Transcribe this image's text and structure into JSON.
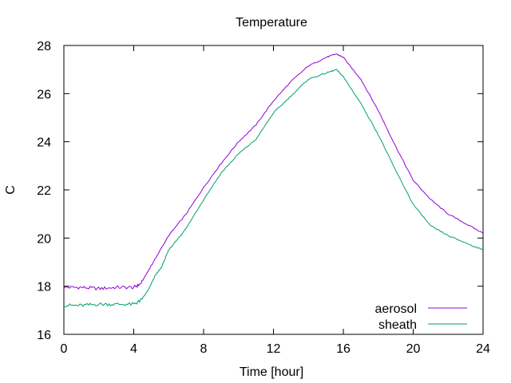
{
  "chart_data": {
    "type": "line",
    "title": "Temperature",
    "xlabel": "Time [hour]",
    "ylabel": "C",
    "xlim": [
      0,
      24
    ],
    "ylim": [
      16,
      28
    ],
    "xticks": [
      0,
      4,
      8,
      12,
      16,
      20,
      24
    ],
    "yticks": [
      16,
      18,
      20,
      22,
      24,
      26,
      28
    ],
    "grid": false,
    "legend_position": "bottom-right",
    "series": [
      {
        "name": "aerosol",
        "color": "#9400d3",
        "x": [
          0,
          1,
          2,
          3,
          4,
          4.4,
          4.8,
          5.2,
          5.6,
          6,
          7,
          8,
          9,
          10,
          11,
          12,
          13,
          14,
          15,
          15.6,
          16,
          17,
          18,
          19,
          20,
          21,
          22,
          23,
          24
        ],
        "y": [
          17.95,
          17.95,
          17.9,
          17.95,
          17.95,
          18.1,
          18.6,
          19.1,
          19.6,
          20.1,
          21.0,
          22.1,
          23.1,
          24.0,
          24.7,
          25.7,
          26.5,
          27.15,
          27.5,
          27.65,
          27.5,
          26.6,
          25.3,
          23.8,
          22.4,
          21.6,
          21.0,
          20.6,
          20.2
        ]
      },
      {
        "name": "sheath",
        "color": "#009e73",
        "x": [
          0,
          1,
          2,
          3,
          4,
          4.4,
          4.8,
          5.2,
          5.6,
          6,
          7,
          8,
          9,
          10,
          11,
          12,
          13,
          14,
          15,
          15.6,
          16,
          17,
          18,
          19,
          20,
          21,
          22,
          23,
          24
        ],
        "y": [
          17.2,
          17.2,
          17.25,
          17.25,
          17.25,
          17.4,
          17.8,
          18.4,
          18.8,
          19.5,
          20.4,
          21.6,
          22.7,
          23.5,
          24.1,
          25.2,
          25.9,
          26.6,
          26.85,
          27.0,
          26.7,
          25.6,
          24.3,
          22.8,
          21.4,
          20.5,
          20.1,
          19.8,
          19.5
        ]
      }
    ]
  }
}
